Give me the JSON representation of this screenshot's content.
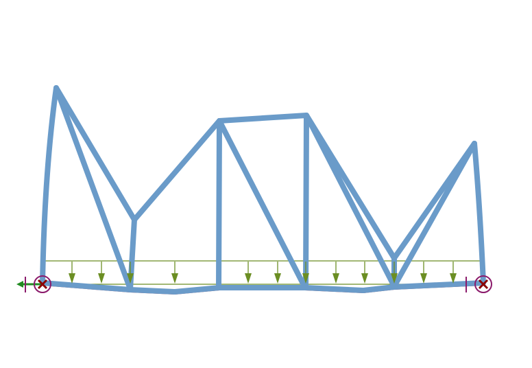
{
  "diagram": {
    "type": "deformed-truss-with-distributed-load",
    "colors": {
      "background": "#ffffff",
      "member": "#6a9bc9",
      "member_deflection": "#c0404a",
      "load": "#6b8e23",
      "support": "#8b1a6b",
      "support_reaction": "#228b22",
      "support_marker": "#8b0000"
    },
    "icons": [
      "pinned-support-icon",
      "roller-support-icon",
      "load-arrow-icon",
      "reaction-arrow-icon"
    ],
    "load_arrow_count": 12
  }
}
